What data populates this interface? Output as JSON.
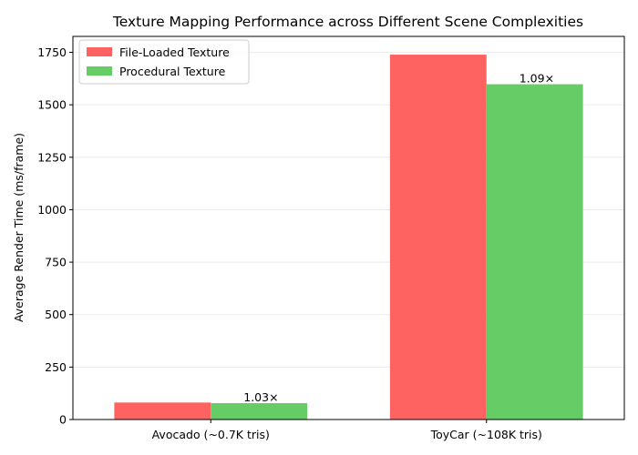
{
  "chart_data": {
    "type": "bar",
    "title": "Texture Mapping Performance across Different Scene Complexities",
    "xlabel": "",
    "ylabel": "Average Render Time (ms/frame)",
    "categories": [
      "Avocado (~0.7K tris)",
      "ToyCar (~108K tris)"
    ],
    "series": [
      {
        "name": "File-Loaded Texture",
        "values": [
          81,
          1739
        ],
        "color": "#ff6361"
      },
      {
        "name": "Procedural Texture",
        "values": [
          78,
          1598
        ],
        "color": "#66cc66"
      }
    ],
    "annotations": [
      "1.03×",
      "1.09×"
    ],
    "ylim": [
      0,
      1826
    ],
    "yticks": [
      0,
      250,
      500,
      750,
      1000,
      1250,
      1500,
      1750
    ],
    "grid": true,
    "legend": "top-left"
  }
}
